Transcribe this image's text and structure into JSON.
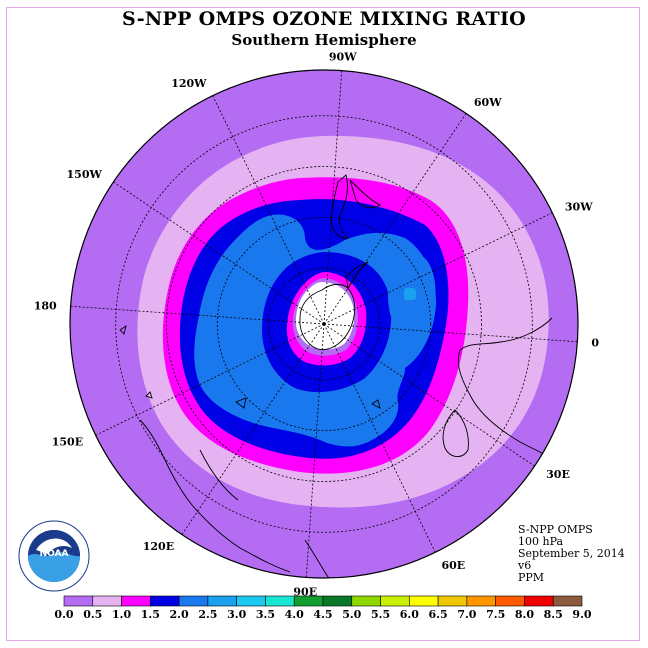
{
  "title": "S-NPP OMPS OZONE MIXING RATIO",
  "subtitle": "Southern Hemisphere",
  "longitude_labels": [
    {
      "lon": "90W",
      "deg": -90
    },
    {
      "lon": "60W",
      "deg": -60
    },
    {
      "lon": "30W",
      "deg": -30
    },
    {
      "lon": "0",
      "deg": 0
    },
    {
      "lon": "30E",
      "deg": 30
    },
    {
      "lon": "60E",
      "deg": 60
    },
    {
      "lon": "90E",
      "deg": 90
    },
    {
      "lon": "120E",
      "deg": 120
    },
    {
      "lon": "150E",
      "deg": 150
    },
    {
      "lon": "180",
      "deg": 180
    },
    {
      "lon": "150W",
      "deg": -150
    },
    {
      "lon": "120W",
      "deg": -120
    }
  ],
  "info": {
    "instrument": "S-NPP OMPS",
    "level": "100 hPa",
    "date": "September 5, 2014",
    "version": "v6",
    "units": "PPM"
  },
  "logo": {
    "text": "NOAA",
    "ring_text": "NATIONAL OCEANIC AND ATMOSPHERIC ADMINISTRATION · U.S. DEPARTMENT OF COMMERCE"
  },
  "colorbar": {
    "labels": [
      "0.0",
      "0.5",
      "1.0",
      "1.5",
      "2.0",
      "2.5",
      "3.0",
      "3.5",
      "4.0",
      "4.5",
      "5.0",
      "5.5",
      "6.0",
      "6.5",
      "7.0",
      "7.5",
      "8.0",
      "8.5",
      "9.0"
    ],
    "colors": [
      "#b36cf2",
      "#e6b3f2",
      "#ff00ff",
      "#0000e6",
      "#1a78ee",
      "#1aa0f0",
      "#1ac8f0",
      "#19e6d2",
      "#11a030",
      "#0a7828",
      "#8ed800",
      "#c8f000",
      "#ffff00",
      "#f0c800",
      "#ff9600",
      "#ff5a00",
      "#f00000",
      "#8c5a3c"
    ]
  },
  "ozone_levels": [
    {
      "value": "0.0-0.5",
      "color": "#b36cf2"
    },
    {
      "value": "0.5-1.0",
      "color": "#e6b3f2"
    },
    {
      "value": "1.0-1.5",
      "color": "#ff00ff"
    },
    {
      "value": "1.5-2.0",
      "color": "#0000e6"
    },
    {
      "value": "2.0-2.5",
      "color": "#1a78ee"
    },
    {
      "value": "2.5-3.0",
      "color": "#1aa0f0"
    }
  ]
}
